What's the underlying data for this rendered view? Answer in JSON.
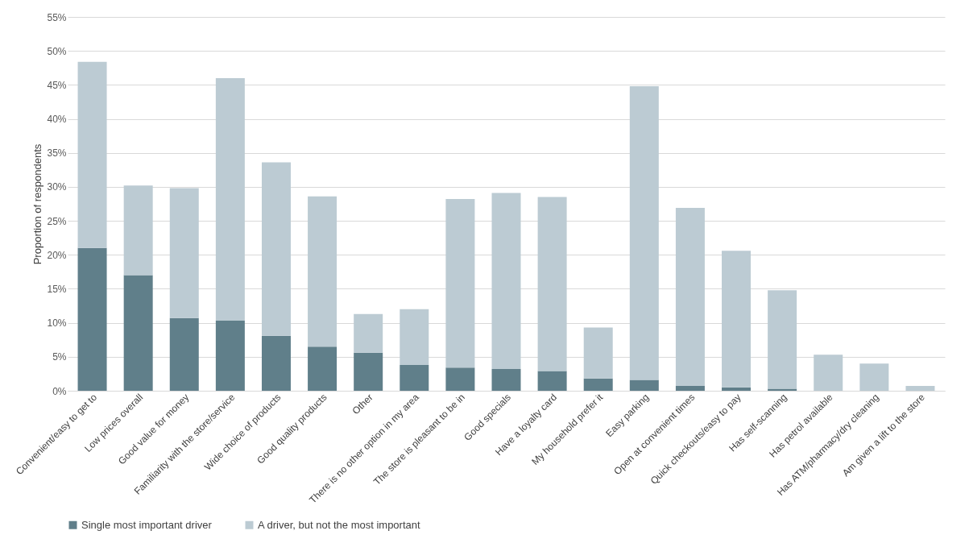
{
  "chart_data": {
    "type": "bar",
    "stacked": true,
    "ylabel": "Proportion of respondents",
    "categories": [
      "Convenient/easy to get to",
      "Low prices overall",
      "Good value for money",
      "Familiarity with the store/service",
      "Wide choice of products",
      "Good quality products",
      "Other",
      "There is no other option in my area",
      "The store is pleasant to be in",
      "Good specials",
      "Have a loyalty card",
      "My household prefer it",
      "Easy parking",
      "Open at convenient times",
      "Quick checkouts/easy to pay",
      "Has self-scanning",
      "Has petrol available",
      "Has ATM/pharmacy/dry cleaning",
      "Am given a lift to the store"
    ],
    "series": [
      {
        "name": "Single most important driver",
        "color": "#607f8a",
        "values": [
          21.0,
          17.0,
          10.7,
          10.3,
          8.1,
          6.5,
          5.6,
          3.8,
          3.4,
          3.2,
          2.9,
          1.8,
          1.6,
          0.7,
          0.5,
          0.3,
          0,
          0,
          0
        ]
      },
      {
        "name": "A driver, but not the most important",
        "color": "#bccbd3",
        "values": [
          27.4,
          13.2,
          19.1,
          35.7,
          25.5,
          22.1,
          5.7,
          8.2,
          24.8,
          25.9,
          25.6,
          7.5,
          43.2,
          26.2,
          20.1,
          14.5,
          5.3,
          4.0,
          0.7
        ]
      }
    ],
    "ylim": [
      0,
      55
    ],
    "yticks": [
      {
        "value": 0,
        "label": "0%"
      },
      {
        "value": 5,
        "label": "5%"
      },
      {
        "value": 10,
        "label": "10%"
      },
      {
        "value": 15,
        "label": "15%"
      },
      {
        "value": 20,
        "label": "20%"
      },
      {
        "value": 25,
        "label": "25%"
      },
      {
        "value": 30,
        "label": "30%"
      },
      {
        "value": 35,
        "label": "35%"
      },
      {
        "value": 40,
        "label": "40%"
      },
      {
        "value": 45,
        "label": "45%"
      },
      {
        "value": 50,
        "label": "50%"
      },
      {
        "value": 55,
        "label": "55%"
      }
    ],
    "grid": "y",
    "legend": "bottom"
  }
}
